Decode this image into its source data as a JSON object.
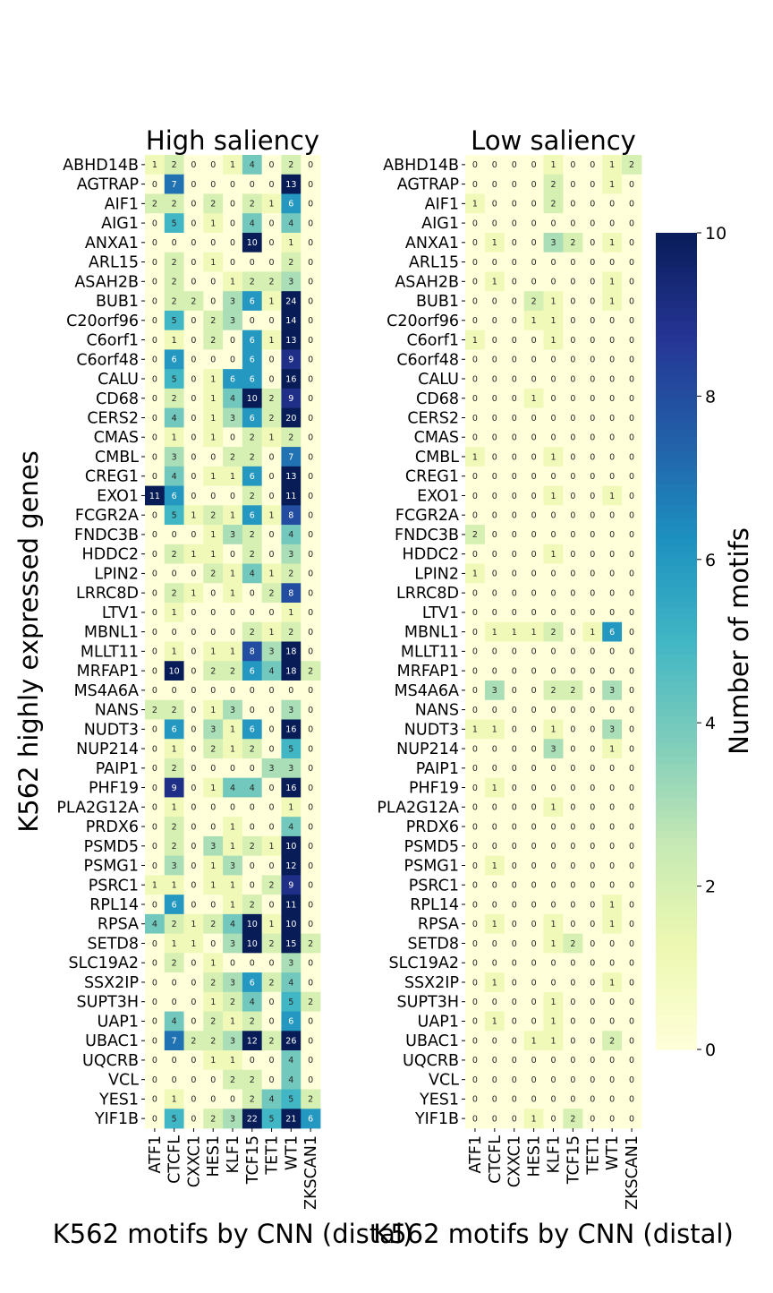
{
  "chart_data": [
    {
      "type": "heatmap",
      "title": "High saliency",
      "xlabel": "K562 motifs by CNN (distal)",
      "ylabel": "K562 highly expressed genes",
      "x_categories": [
        "ATF1",
        "CTCFL",
        "CXXC1",
        "HES1",
        "KLF1",
        "TCF15",
        "TET1",
        "WT1",
        "ZKSCAN1"
      ],
      "y_categories": [
        "ABHD14B",
        "AGTRAP",
        "AIF1",
        "AIG1",
        "ANXA1",
        "ARL15",
        "ASAH2B",
        "BUB1",
        "C20orf96",
        "C6orf1",
        "C6orf48",
        "CALU",
        "CD68",
        "CERS2",
        "CMAS",
        "CMBL",
        "CREG1",
        "EXO1",
        "FCGR2A",
        "FNDC3B",
        "HDDC2",
        "LPIN2",
        "LRRC8D",
        "LTV1",
        "MBNL1",
        "MLLT11",
        "MRFAP1",
        "MS4A6A",
        "NANS",
        "NUDT3",
        "NUP214",
        "PAIP1",
        "PHF19",
        "PLA2G12A",
        "PRDX6",
        "PSMD5",
        "PSMG1",
        "PSRC1",
        "RPL14",
        "RPSA",
        "SETD8",
        "SLC19A2",
        "SSX2IP",
        "SUPT3H",
        "UAP1",
        "UBAC1",
        "UQCRB",
        "VCL",
        "YES1",
        "YIF1B"
      ],
      "values": [
        [
          1,
          2,
          0,
          0,
          1,
          4,
          0,
          2,
          0
        ],
        [
          0,
          7,
          0,
          0,
          0,
          0,
          0,
          13,
          0
        ],
        [
          2,
          2,
          0,
          2,
          0,
          2,
          1,
          6,
          0
        ],
        [
          0,
          5,
          0,
          1,
          0,
          4,
          0,
          4,
          0
        ],
        [
          0,
          0,
          0,
          0,
          0,
          10,
          0,
          1,
          0
        ],
        [
          0,
          2,
          0,
          1,
          0,
          0,
          0,
          2,
          0
        ],
        [
          0,
          2,
          0,
          0,
          1,
          2,
          2,
          3,
          0
        ],
        [
          0,
          2,
          2,
          0,
          3,
          6,
          1,
          24,
          0
        ],
        [
          0,
          5,
          0,
          2,
          3,
          0,
          0,
          14,
          0
        ],
        [
          0,
          1,
          0,
          2,
          0,
          6,
          1,
          13,
          0
        ],
        [
          0,
          6,
          0,
          0,
          0,
          6,
          0,
          9,
          0
        ],
        [
          0,
          5,
          0,
          1,
          6,
          6,
          0,
          16,
          0
        ],
        [
          0,
          2,
          0,
          1,
          4,
          10,
          2,
          9,
          0
        ],
        [
          0,
          4,
          0,
          1,
          3,
          6,
          2,
          20,
          0
        ],
        [
          0,
          1,
          0,
          1,
          0,
          2,
          1,
          2,
          0
        ],
        [
          0,
          3,
          0,
          0,
          2,
          2,
          0,
          7,
          0
        ],
        [
          0,
          4,
          0,
          1,
          1,
          6,
          0,
          13,
          0
        ],
        [
          11,
          6,
          0,
          0,
          0,
          2,
          0,
          11,
          0
        ],
        [
          0,
          5,
          1,
          2,
          1,
          6,
          1,
          8,
          0
        ],
        [
          0,
          0,
          0,
          1,
          3,
          2,
          0,
          4,
          0
        ],
        [
          0,
          2,
          1,
          1,
          0,
          2,
          0,
          3,
          0
        ],
        [
          0,
          0,
          0,
          2,
          1,
          4,
          1,
          2,
          0
        ],
        [
          0,
          2,
          1,
          0,
          1,
          0,
          2,
          8,
          0
        ],
        [
          0,
          1,
          0,
          0,
          0,
          0,
          0,
          1,
          0
        ],
        [
          0,
          0,
          0,
          0,
          0,
          2,
          1,
          2,
          0
        ],
        [
          0,
          1,
          0,
          1,
          1,
          8,
          3,
          18,
          0
        ],
        [
          0,
          10,
          0,
          2,
          2,
          6,
          4,
          18,
          2
        ],
        [
          0,
          0,
          0,
          0,
          0,
          0,
          0,
          0,
          0
        ],
        [
          2,
          2,
          0,
          1,
          3,
          0,
          0,
          3,
          0
        ],
        [
          0,
          6,
          0,
          3,
          1,
          6,
          0,
          16,
          0
        ],
        [
          0,
          1,
          0,
          2,
          1,
          2,
          0,
          5,
          0
        ],
        [
          0,
          2,
          0,
          0,
          0,
          0,
          3,
          3,
          0
        ],
        [
          0,
          9,
          0,
          1,
          4,
          4,
          0,
          16,
          0
        ],
        [
          0,
          1,
          0,
          0,
          0,
          0,
          0,
          1,
          0
        ],
        [
          0,
          2,
          0,
          0,
          1,
          0,
          0,
          4,
          0
        ],
        [
          0,
          2,
          0,
          3,
          1,
          2,
          1,
          10,
          0
        ],
        [
          0,
          3,
          0,
          1,
          3,
          0,
          0,
          12,
          0
        ],
        [
          1,
          1,
          0,
          1,
          1,
          0,
          2,
          9,
          0
        ],
        [
          0,
          6,
          0,
          0,
          1,
          2,
          0,
          11,
          0
        ],
        [
          4,
          2,
          1,
          2,
          4,
          10,
          1,
          10,
          0
        ],
        [
          0,
          1,
          1,
          0,
          3,
          10,
          2,
          15,
          2
        ],
        [
          0,
          2,
          0,
          1,
          0,
          0,
          0,
          3,
          0
        ],
        [
          0,
          0,
          0,
          2,
          3,
          6,
          2,
          4,
          0
        ],
        [
          0,
          0,
          0,
          1,
          2,
          4,
          0,
          5,
          2
        ],
        [
          0,
          4,
          0,
          2,
          1,
          2,
          0,
          6,
          0
        ],
        [
          0,
          7,
          2,
          2,
          3,
          12,
          2,
          26,
          0
        ],
        [
          0,
          0,
          0,
          1,
          1,
          0,
          0,
          4,
          0
        ],
        [
          0,
          0,
          0,
          0,
          2,
          2,
          0,
          4,
          0
        ],
        [
          0,
          1,
          0,
          0,
          0,
          2,
          4,
          5,
          2
        ],
        [
          0,
          5,
          0,
          2,
          3,
          22,
          5,
          21,
          6
        ]
      ]
    },
    {
      "type": "heatmap",
      "title": "Low saliency",
      "xlabel": "K562 motifs by CNN (distal)",
      "ylabel": "",
      "x_categories": [
        "ATF1",
        "CTCFL",
        "CXXC1",
        "HES1",
        "KLF1",
        "TCF15",
        "TET1",
        "WT1",
        "ZKSCAN1"
      ],
      "y_categories": [
        "ABHD14B",
        "AGTRAP",
        "AIF1",
        "AIG1",
        "ANXA1",
        "ARL15",
        "ASAH2B",
        "BUB1",
        "C20orf96",
        "C6orf1",
        "C6orf48",
        "CALU",
        "CD68",
        "CERS2",
        "CMAS",
        "CMBL",
        "CREG1",
        "EXO1",
        "FCGR2A",
        "FNDC3B",
        "HDDC2",
        "LPIN2",
        "LRRC8D",
        "LTV1",
        "MBNL1",
        "MLLT11",
        "MRFAP1",
        "MS4A6A",
        "NANS",
        "NUDT3",
        "NUP214",
        "PAIP1",
        "PHF19",
        "PLA2G12A",
        "PRDX6",
        "PSMD5",
        "PSMG1",
        "PSRC1",
        "RPL14",
        "RPSA",
        "SETD8",
        "SLC19A2",
        "SSX2IP",
        "SUPT3H",
        "UAP1",
        "UBAC1",
        "UQCRB",
        "VCL",
        "YES1",
        "YIF1B"
      ],
      "values": [
        [
          0,
          0,
          0,
          0,
          1,
          0,
          0,
          1,
          2
        ],
        [
          0,
          0,
          0,
          0,
          2,
          0,
          0,
          1,
          0
        ],
        [
          1,
          0,
          0,
          0,
          2,
          0,
          0,
          0,
          0
        ],
        [
          0,
          0,
          0,
          0,
          0,
          0,
          0,
          0,
          0
        ],
        [
          0,
          1,
          0,
          0,
          3,
          2,
          0,
          1,
          0
        ],
        [
          0,
          0,
          0,
          0,
          0,
          0,
          0,
          0,
          0
        ],
        [
          0,
          1,
          0,
          0,
          0,
          0,
          0,
          1,
          0
        ],
        [
          0,
          0,
          0,
          2,
          1,
          0,
          0,
          1,
          0
        ],
        [
          0,
          0,
          0,
          1,
          1,
          0,
          0,
          0,
          0
        ],
        [
          1,
          0,
          0,
          0,
          1,
          0,
          0,
          0,
          0
        ],
        [
          0,
          0,
          0,
          0,
          0,
          0,
          0,
          0,
          0
        ],
        [
          0,
          0,
          0,
          0,
          0,
          0,
          0,
          0,
          0
        ],
        [
          0,
          0,
          0,
          1,
          0,
          0,
          0,
          0,
          0
        ],
        [
          0,
          0,
          0,
          0,
          0,
          0,
          0,
          0,
          0
        ],
        [
          0,
          0,
          0,
          0,
          0,
          0,
          0,
          0,
          0
        ],
        [
          1,
          0,
          0,
          0,
          1,
          0,
          0,
          0,
          0
        ],
        [
          0,
          0,
          0,
          0,
          0,
          0,
          0,
          0,
          0
        ],
        [
          0,
          0,
          0,
          0,
          1,
          0,
          0,
          1,
          0
        ],
        [
          0,
          0,
          0,
          0,
          0,
          0,
          0,
          0,
          0
        ],
        [
          2,
          0,
          0,
          0,
          0,
          0,
          0,
          0,
          0
        ],
        [
          0,
          0,
          0,
          0,
          1,
          0,
          0,
          0,
          0
        ],
        [
          1,
          0,
          0,
          0,
          0,
          0,
          0,
          0,
          0
        ],
        [
          0,
          0,
          0,
          0,
          0,
          0,
          0,
          0,
          0
        ],
        [
          0,
          0,
          0,
          0,
          0,
          0,
          0,
          0,
          0
        ],
        [
          0,
          1,
          1,
          1,
          2,
          0,
          1,
          6,
          0
        ],
        [
          0,
          0,
          0,
          0,
          0,
          0,
          0,
          0,
          0
        ],
        [
          0,
          0,
          0,
          0,
          0,
          0,
          0,
          0,
          0
        ],
        [
          0,
          3,
          0,
          0,
          2,
          2,
          0,
          3,
          0
        ],
        [
          0,
          0,
          0,
          0,
          0,
          0,
          0,
          0,
          0
        ],
        [
          1,
          1,
          0,
          0,
          1,
          0,
          0,
          3,
          0
        ],
        [
          0,
          0,
          0,
          0,
          3,
          0,
          0,
          1,
          0
        ],
        [
          0,
          0,
          0,
          0,
          0,
          0,
          0,
          0,
          0
        ],
        [
          0,
          1,
          0,
          0,
          0,
          0,
          0,
          0,
          0
        ],
        [
          0,
          0,
          0,
          0,
          1,
          0,
          0,
          0,
          0
        ],
        [
          0,
          0,
          0,
          0,
          0,
          0,
          0,
          0,
          0
        ],
        [
          0,
          0,
          0,
          0,
          0,
          0,
          0,
          0,
          0
        ],
        [
          0,
          1,
          0,
          0,
          0,
          0,
          0,
          0,
          0
        ],
        [
          0,
          0,
          0,
          0,
          0,
          0,
          0,
          0,
          0
        ],
        [
          0,
          0,
          0,
          0,
          0,
          0,
          0,
          1,
          0
        ],
        [
          0,
          1,
          0,
          0,
          1,
          0,
          0,
          1,
          0
        ],
        [
          0,
          0,
          0,
          0,
          1,
          2,
          0,
          0,
          0
        ],
        [
          0,
          0,
          0,
          0,
          0,
          0,
          0,
          0,
          0
        ],
        [
          0,
          1,
          0,
          0,
          0,
          0,
          0,
          1,
          0
        ],
        [
          0,
          0,
          0,
          0,
          1,
          0,
          0,
          0,
          0
        ],
        [
          0,
          1,
          0,
          0,
          1,
          0,
          0,
          0,
          0
        ],
        [
          0,
          0,
          0,
          1,
          1,
          0,
          0,
          2,
          0
        ],
        [
          0,
          0,
          0,
          0,
          0,
          0,
          0,
          0,
          0
        ],
        [
          0,
          0,
          0,
          0,
          0,
          0,
          0,
          0,
          0
        ],
        [
          0,
          0,
          0,
          0,
          0,
          0,
          0,
          0,
          0
        ],
        [
          0,
          0,
          0,
          1,
          0,
          2,
          0,
          0,
          0
        ]
      ]
    }
  ],
  "colorbar": {
    "label": "Number of motifs",
    "vmin": 0,
    "vmax": 10,
    "ticks": [
      0,
      2,
      4,
      6,
      8,
      10
    ],
    "colormap": "YlGnBu",
    "color_stops": [
      "#ffffd9",
      "#edf8b1",
      "#c7e9b4",
      "#7fcdbb",
      "#41b6c4",
      "#1d91c0",
      "#225ea8",
      "#253494",
      "#081d58"
    ]
  }
}
